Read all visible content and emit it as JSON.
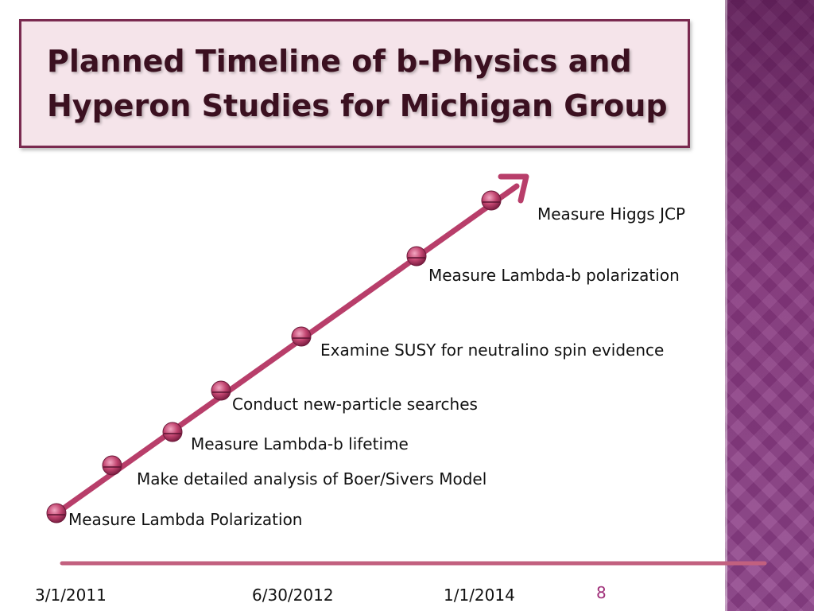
{
  "slide": {
    "title_lines": [
      "Planned Timeline of b-Physics and",
      "Hyperon Studies for Michigan Group"
    ],
    "page_number": "8"
  },
  "colors": {
    "accent_line": "#b83e6a",
    "node_fill": "#a8305a",
    "title_border": "#7a2a50",
    "title_background": "#f5e4ea",
    "side_band": "#8a3f86"
  },
  "milestones": [
    {
      "label": "Measure Lambda Polarization"
    },
    {
      "label": "Make detailed analysis of Boer/Sivers Model"
    },
    {
      "label": "Measure Lambda-b lifetime"
    },
    {
      "label": "Conduct new-particle searches"
    },
    {
      "label": "Examine SUSY for neutralino spin evidence"
    },
    {
      "label": "Measure Lambda-b polarization"
    },
    {
      "label": "Measure Higgs JCP"
    }
  ],
  "dates": [
    "3/1/2011",
    "6/30/2012",
    "1/1/2014"
  ]
}
